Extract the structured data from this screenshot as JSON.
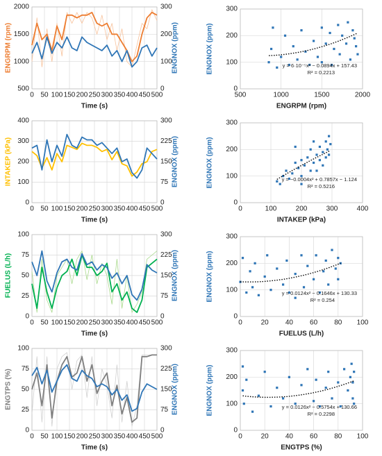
{
  "chart_data": [
    {
      "type": "line",
      "xlabel": "Time (s)",
      "ylabel": "ENGRPM (rpm)",
      "y2label": "ENGNOX (ppm)",
      "grid": true,
      "x": [
        0,
        20,
        40,
        60,
        80,
        100,
        120,
        140,
        160,
        180,
        200,
        220,
        240,
        260,
        280,
        300,
        320,
        340,
        360,
        380,
        400,
        420,
        440,
        460,
        480,
        500
      ],
      "xlim": [
        0,
        500
      ],
      "xticks": [
        0,
        50,
        100,
        150,
        200,
        250,
        300,
        350,
        400,
        450,
        500
      ],
      "ylim": [
        500,
        2000
      ],
      "yticks": [
        500,
        1000,
        1500,
        2000
      ],
      "y2lim": [
        0,
        300
      ],
      "y2ticks": [
        0,
        100,
        200,
        300
      ],
      "series": [
        {
          "color": "#f8c29b",
          "values": [
            1000,
            1800,
            900,
            1600,
            1000,
            1700,
            1100,
            1900,
            1700,
            1900,
            1700,
            1900,
            1800,
            1500,
            1850,
            1400,
            1700,
            1200,
            1600,
            1000,
            900,
            1300,
            1700,
            1600,
            1950,
            1750
          ]
        },
        {
          "color": "#ed7d31",
          "values": [
            1300,
            1700,
            1400,
            1500,
            1200,
            1650,
            1400,
            1850,
            1850,
            1800,
            1850,
            1850,
            1900,
            1700,
            1650,
            1700,
            1500,
            1500,
            1350,
            1200,
            1000,
            1100,
            1500,
            1800,
            1900,
            1850
          ]
        },
        {
          "color": "#2e75b6",
          "axis": "y2",
          "values": [
            130,
            170,
            110,
            190,
            130,
            170,
            150,
            190,
            150,
            140,
            190,
            170,
            160,
            150,
            140,
            160,
            120,
            140,
            100,
            140,
            80,
            100,
            150,
            160,
            120,
            150
          ]
        }
      ]
    },
    {
      "type": "scatter",
      "xlabel": "ENGRPM (rpm)",
      "ylabel": "ENGNOX (ppm)",
      "grid": true,
      "color": "#2e75b6",
      "xlim": [
        500,
        2000
      ],
      "xticks": [
        500,
        1000,
        1500,
        2000
      ],
      "ylim": [
        0,
        300
      ],
      "yticks": [
        0,
        100,
        200,
        300
      ],
      "x": [
        850,
        880,
        900,
        950,
        1000,
        1050,
        1100,
        1150,
        1200,
        1250,
        1300,
        1350,
        1400,
        1450,
        1500,
        1500,
        1550,
        1600,
        1620,
        1650,
        1700,
        1720,
        1750,
        1800,
        1820,
        1850,
        1880,
        1900,
        1920,
        1940
      ],
      "values": [
        100,
        150,
        230,
        80,
        120,
        200,
        90,
        160,
        110,
        220,
        140,
        90,
        180,
        120,
        230,
        100,
        170,
        210,
        90,
        150,
        240,
        130,
        200,
        170,
        250,
        110,
        220,
        190,
        160,
        130
      ],
      "trend_coefficients": [
        6e-05,
        -0.0894,
        157.43
      ],
      "annotations": [
        "y = 6·10⁻⁵x² − 0.0894x + 157.43",
        "R² = 0.2213"
      ]
    },
    {
      "type": "line",
      "xlabel": "Time (s)",
      "ylabel": "INTAKEP (kPa)",
      "y2label": "ENGNOX (ppm)",
      "grid": true,
      "x": [
        0,
        20,
        40,
        60,
        80,
        100,
        120,
        140,
        160,
        180,
        200,
        220,
        240,
        260,
        280,
        300,
        320,
        340,
        360,
        380,
        400,
        420,
        440,
        460,
        480,
        500
      ],
      "xlim": [
        0,
        500
      ],
      "xticks": [
        0,
        50,
        100,
        150,
        200,
        250,
        300,
        350,
        400,
        450,
        500
      ],
      "ylim": [
        0,
        400
      ],
      "yticks": [
        0,
        100,
        200,
        300,
        400
      ],
      "y2lim": [
        0,
        300
      ],
      "y2ticks": [
        0,
        75,
        150,
        225,
        300
      ],
      "series": [
        {
          "color": "#ffc000",
          "values": [
            250,
            230,
            170,
            220,
            160,
            240,
            200,
            280,
            270,
            260,
            290,
            280,
            280,
            270,
            250,
            260,
            210,
            250,
            190,
            180,
            130,
            150,
            190,
            200,
            250,
            260
          ]
        },
        {
          "color": "#2e75b6",
          "axis": "y2",
          "values": [
            200,
            210,
            120,
            230,
            150,
            210,
            170,
            250,
            210,
            200,
            240,
            230,
            230,
            210,
            220,
            200,
            180,
            200,
            150,
            160,
            110,
            90,
            120,
            200,
            180,
            160
          ]
        }
      ]
    },
    {
      "type": "scatter",
      "xlabel": "INTAKEP (kPa)",
      "ylabel": "ENGNOX (ppm)",
      "grid": true,
      "color": "#2e75b6",
      "xlim": [
        0,
        400
      ],
      "xticks": [
        0,
        100,
        200,
        300,
        400
      ],
      "ylim": [
        0,
        300
      ],
      "yticks": [
        0,
        100,
        200,
        300
      ],
      "x": [
        120,
        130,
        140,
        150,
        160,
        170,
        180,
        190,
        200,
        200,
        210,
        220,
        230,
        230,
        240,
        250,
        250,
        260,
        260,
        270,
        270,
        280,
        280,
        285,
        290,
        290,
        295,
        240,
        200,
        180
      ],
      "values": [
        80,
        70,
        100,
        120,
        90,
        110,
        150,
        130,
        100,
        160,
        140,
        170,
        120,
        200,
        150,
        180,
        120,
        210,
        160,
        190,
        140,
        230,
        170,
        200,
        250,
        180,
        220,
        230,
        70,
        210
      ],
      "trend_coefficients": [
        -0.0004,
        0.7857,
        -1.124
      ],
      "annotations": [
        "y = −0.0004x² + 0.7857x − 1.124",
        "R² = 0.5216"
      ]
    },
    {
      "type": "line",
      "xlabel": "Time (s)",
      "ylabel": "FUELUS (L/h)",
      "y2label": "ENGNOX (ppm)",
      "grid": true,
      "x": [
        0,
        20,
        40,
        60,
        80,
        100,
        120,
        140,
        160,
        180,
        200,
        220,
        240,
        260,
        280,
        300,
        320,
        340,
        360,
        380,
        400,
        420,
        440,
        460,
        480,
        500
      ],
      "xlim": [
        0,
        500
      ],
      "xticks": [
        0,
        50,
        100,
        150,
        200,
        250,
        300,
        350,
        400,
        450,
        500
      ],
      "ylim": [
        0,
        100
      ],
      "yticks": [
        0,
        25,
        50,
        75,
        100
      ],
      "y2lim": [
        0,
        300
      ],
      "y2ticks": [
        0,
        75,
        150,
        225,
        300
      ],
      "series": [
        {
          "color": "#a9d98b",
          "values": [
            55,
            5,
            70,
            20,
            5,
            50,
            60,
            70,
            40,
            70,
            80,
            45,
            75,
            40,
            65,
            50,
            15,
            70,
            10,
            50,
            5,
            15,
            30,
            70,
            75,
            80
          ]
        },
        {
          "color": "#00b050",
          "values": [
            40,
            10,
            60,
            30,
            10,
            35,
            50,
            55,
            70,
            50,
            75,
            60,
            60,
            50,
            55,
            65,
            30,
            40,
            20,
            30,
            10,
            5,
            20,
            60,
            65,
            70
          ]
        },
        {
          "color": "#2e75b6",
          "axis": "y2",
          "values": [
            200,
            150,
            240,
            130,
            90,
            160,
            200,
            210,
            180,
            170,
            230,
            190,
            200,
            170,
            190,
            180,
            140,
            160,
            120,
            150,
            80,
            60,
            100,
            190,
            170,
            160
          ]
        }
      ]
    },
    {
      "type": "scatter",
      "xlabel": "FUELUS (L/h)",
      "ylabel": "ENGNOX (ppm)",
      "grid": true,
      "color": "#2e75b6",
      "xlim": [
        0,
        100
      ],
      "xticks": [
        0,
        20,
        40,
        60,
        80,
        100
      ],
      "ylim": [
        0,
        300
      ],
      "yticks": [
        0,
        100,
        200,
        300
      ],
      "x": [
        0,
        2,
        5,
        8,
        10,
        12,
        15,
        20,
        22,
        25,
        30,
        35,
        38,
        40,
        45,
        50,
        52,
        55,
        60,
        62,
        65,
        68,
        70,
        72,
        75,
        78,
        80,
        80,
        82,
        45
      ],
      "values": [
        130,
        220,
        90,
        170,
        110,
        200,
        80,
        150,
        230,
        100,
        180,
        120,
        210,
        90,
        160,
        230,
        110,
        190,
        140,
        230,
        90,
        170,
        210,
        120,
        250,
        180,
        220,
        140,
        200,
        70
      ],
      "trend_coefficients": [
        0.0124,
        -0.1646,
        130.33
      ],
      "annotations": [
        "y = 0.0124x² − 0.1646x + 130.33",
        "R² = 0.254"
      ]
    },
    {
      "type": "line",
      "xlabel": "Time (s)",
      "ylabel": "ENGTPS (%)",
      "y2label": "ENGNOX (ppm)",
      "grid": true,
      "x": [
        0,
        20,
        40,
        60,
        80,
        100,
        120,
        140,
        160,
        180,
        200,
        220,
        240,
        260,
        280,
        300,
        320,
        340,
        360,
        380,
        400,
        420,
        440,
        460,
        480,
        500
      ],
      "xlim": [
        0,
        500
      ],
      "xticks": [
        0,
        50,
        100,
        150,
        200,
        250,
        300,
        350,
        400,
        450,
        500
      ],
      "ylim": [
        0,
        100
      ],
      "yticks": [
        0,
        25,
        50,
        75,
        100
      ],
      "y2lim": [
        0,
        300
      ],
      "y2ticks": [
        0,
        75,
        150,
        225,
        300
      ],
      "series": [
        {
          "color": "#d0d0d0",
          "values": [
            20,
            90,
            10,
            90,
            5,
            75,
            90,
            95,
            50,
            85,
            92,
            40,
            90,
            30,
            75,
            55,
            15,
            80,
            10,
            60,
            5,
            30,
            92,
            92,
            92,
            92
          ]
        },
        {
          "color": "#7f7f7f",
          "values": [
            50,
            70,
            30,
            80,
            15,
            60,
            80,
            90,
            65,
            70,
            90,
            60,
            80,
            45,
            60,
            70,
            30,
            55,
            20,
            40,
            10,
            15,
            90,
            90,
            92,
            92
          ]
        },
        {
          "color": "#2e75b6",
          "axis": "y2",
          "values": [
            200,
            230,
            170,
            220,
            140,
            180,
            220,
            240,
            190,
            180,
            220,
            200,
            190,
            160,
            170,
            160,
            130,
            150,
            110,
            130,
            70,
            80,
            140,
            170,
            160,
            150
          ]
        }
      ]
    },
    {
      "type": "scatter",
      "xlabel": "ENGTPS (%)",
      "ylabel": "ENGNOX (ppm)",
      "grid": true,
      "color": "#2e75b6",
      "xlim": [
        0,
        100
      ],
      "xticks": [
        0,
        20,
        40,
        60,
        80,
        100
      ],
      "ylim": [
        0,
        300
      ],
      "yticks": [
        0,
        100,
        200,
        300
      ],
      "x": [
        2,
        2,
        3,
        5,
        10,
        15,
        20,
        25,
        30,
        35,
        40,
        45,
        50,
        55,
        60,
        62,
        65,
        70,
        72,
        75,
        80,
        82,
        85,
        88,
        90,
        91,
        92,
        92,
        93,
        93
      ],
      "values": [
        240,
        150,
        100,
        190,
        70,
        130,
        220,
        90,
        160,
        120,
        200,
        100,
        170,
        230,
        110,
        190,
        90,
        160,
        220,
        120,
        180,
        90,
        230,
        150,
        200,
        250,
        120,
        180,
        220,
        100
      ],
      "trend_coefficients": [
        0.0126,
        -0.5754,
        130.66
      ],
      "annotations": [
        "y = 0.0126x² − 0.5754x + 130.66",
        "R² = 0.2298"
      ]
    }
  ]
}
